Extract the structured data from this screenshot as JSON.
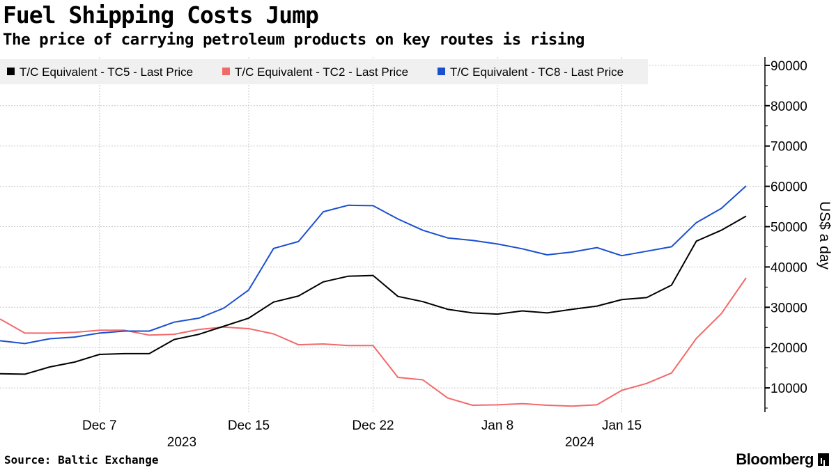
{
  "header": {
    "title": "Fuel Shipping Costs Jump",
    "subtitle": "The price of carrying petroleum products on key routes is rising"
  },
  "footer": {
    "source": "Source: Baltic Exchange",
    "brand": "Bloomberg"
  },
  "chart_data": {
    "type": "line",
    "title": "Fuel Shipping Costs Jump",
    "subtitle": "The price of carrying petroleum products on key routes is rising",
    "xlabel": "",
    "ylabel": "US$ a day",
    "ylim": [
      0,
      92000
    ],
    "yticks": [
      10000,
      20000,
      30000,
      40000,
      50000,
      60000,
      70000,
      80000,
      90000
    ],
    "ytick_labels": [
      "10000",
      "20000",
      "30000",
      "40000",
      "50000",
      "60000",
      "70000",
      "80000",
      "90000"
    ],
    "xticks": [
      {
        "index": 4,
        "label": "Dec 7"
      },
      {
        "index": 10,
        "label": "Dec 15"
      },
      {
        "index": 15,
        "label": "Dec 22"
      },
      {
        "index": 20,
        "label": "Jan 8"
      },
      {
        "index": 25,
        "label": "Jan 15"
      }
    ],
    "year_labels": [
      {
        "index": 7,
        "label": "2023"
      },
      {
        "index": 23,
        "label": "2024"
      }
    ],
    "grid": true,
    "legend_position": "top-left",
    "n_points": 31,
    "series": [
      {
        "name": "T/C Equivalent - TC5 - Last Price",
        "color": "#000000",
        "values": [
          13500,
          13400,
          15200,
          16400,
          18300,
          18500,
          18500,
          22000,
          23300,
          25300,
          27300,
          31300,
          32800,
          36300,
          37700,
          37900,
          32700,
          31400,
          29500,
          28600,
          28300,
          29100,
          28600,
          29500,
          30300,
          31900,
          32400,
          35500,
          46400,
          49100,
          52600
        ]
      },
      {
        "name": "T/C Equivalent - TC2 - Last Price",
        "color": "#f2696a",
        "values": [
          27100,
          23600,
          23600,
          23800,
          24300,
          24300,
          23100,
          23300,
          24500,
          25100,
          24700,
          23400,
          20700,
          20900,
          20500,
          20500,
          12600,
          12000,
          7500,
          5700,
          5800,
          6100,
          5700,
          5500,
          5800,
          9400,
          11100,
          13700,
          22300,
          28400,
          37300
        ]
      },
      {
        "name": "T/C Equivalent - TC8 - Last Price",
        "color": "#1a4fd0",
        "values": [
          21700,
          21000,
          22200,
          22600,
          23600,
          24100,
          24100,
          26300,
          27300,
          29800,
          34300,
          44600,
          46300,
          53700,
          55300,
          55200,
          51900,
          49100,
          47200,
          46600,
          45700,
          44500,
          43000,
          43700,
          44800,
          42800,
          43900,
          45000,
          51000,
          54500,
          60100
        ]
      }
    ]
  }
}
